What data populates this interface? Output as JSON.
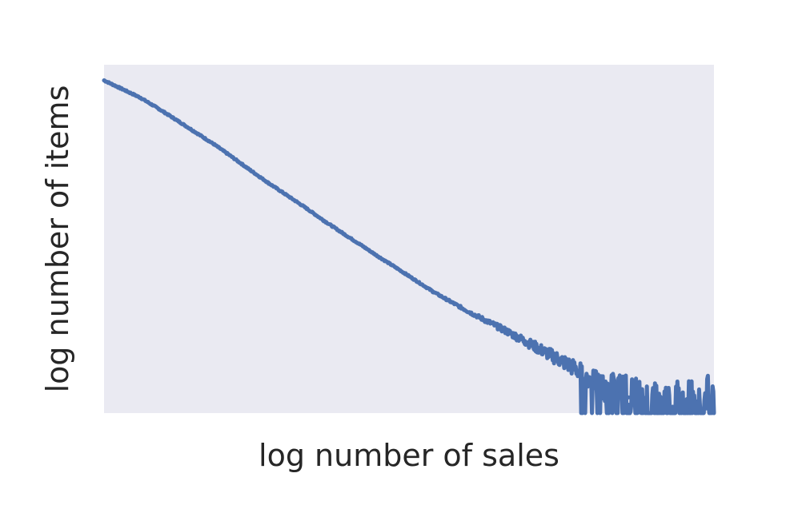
{
  "chart_data": {
    "type": "line",
    "title": "",
    "xlabel": "log number of sales",
    "ylabel": "log number of items",
    "xscale": "log",
    "yscale": "log",
    "x_ticks_visible": false,
    "y_ticks_visible": false,
    "grid": false,
    "legend": "none",
    "xlim": [
      0,
      1
    ],
    "ylim": [
      0,
      1
    ],
    "series": [
      {
        "color": "#4c72b0",
        "x": [
          0.0,
          0.03,
          0.06,
          0.09,
          0.12,
          0.15,
          0.18,
          0.21,
          0.24,
          0.27,
          0.3,
          0.33,
          0.36,
          0.39,
          0.42,
          0.45,
          0.48,
          0.51,
          0.54,
          0.57,
          0.6,
          0.63,
          0.66,
          0.69,
          0.72,
          0.75,
          0.78,
          0.8,
          0.82,
          0.84,
          0.86,
          0.88,
          0.9,
          0.92,
          0.94,
          0.96,
          0.98,
          1.0
        ],
        "y": [
          0.955,
          0.93,
          0.905,
          0.873,
          0.84,
          0.806,
          0.772,
          0.735,
          0.697,
          0.66,
          0.625,
          0.59,
          0.553,
          0.518,
          0.484,
          0.449,
          0.416,
          0.382,
          0.348,
          0.318,
          0.289,
          0.262,
          0.235,
          0.207,
          0.178,
          0.15,
          0.12,
          0.095,
          0.075,
          0.058,
          0.045,
          0.035,
          0.025,
          0.018,
          0.012,
          0.008,
          0.005,
          0.003
        ]
      }
    ]
  },
  "colors": {
    "plot_background": "#eaeaf2",
    "line": "#4c72b0",
    "text": "#262626"
  }
}
